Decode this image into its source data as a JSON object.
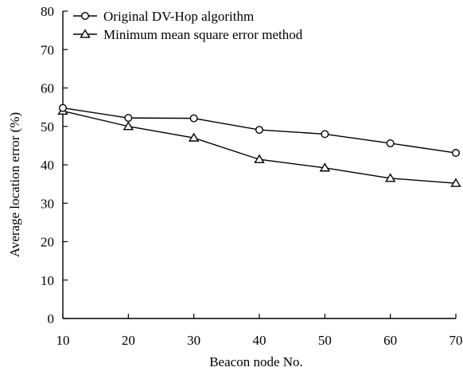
{
  "chart_data": {
    "type": "line",
    "title": "",
    "xlabel": "Beacon node No.",
    "ylabel": "Average location error (%)",
    "x": [
      10,
      20,
      30,
      40,
      50,
      60,
      70
    ],
    "xlim": [
      10,
      70
    ],
    "ylim": [
      0,
      80
    ],
    "xticks": [
      "10",
      "20",
      "30",
      "40",
      "50",
      "60",
      "70"
    ],
    "yticks": [
      "0",
      "10",
      "20",
      "30",
      "40",
      "50",
      "60",
      "70",
      "80"
    ],
    "grid": false,
    "legend_position": "top-left",
    "series": [
      {
        "name": "Original DV-Hop algorithm",
        "marker": "circle",
        "color": "#000000",
        "values": [
          54.8,
          52.2,
          52.1,
          49.1,
          48.0,
          45.6,
          43.1
        ]
      },
      {
        "name": "Minimum mean square error method",
        "marker": "triangle",
        "color": "#000000",
        "values": [
          54.0,
          50.0,
          47.0,
          41.4,
          39.2,
          36.5,
          35.2
        ]
      }
    ]
  }
}
